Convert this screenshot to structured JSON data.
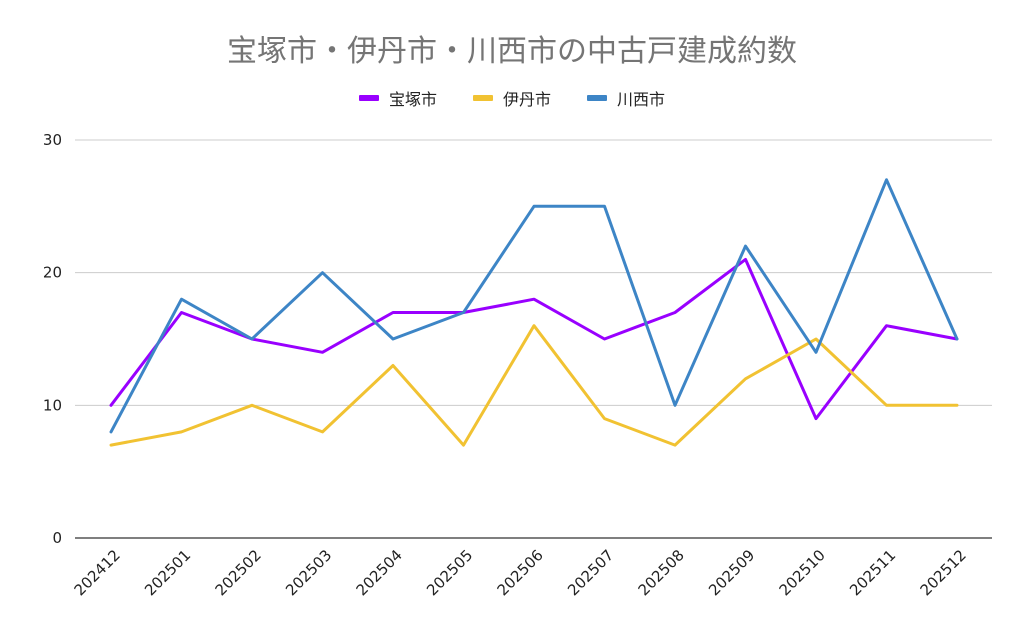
{
  "chart_data": {
    "type": "line",
    "title": "宝塚市・伊丹市・川西市の中古戸建成約数",
    "xlabel": "",
    "ylabel": "",
    "categories": [
      "202412",
      "202501",
      "202502",
      "202503",
      "202504",
      "202505",
      "202506",
      "202507",
      "202508",
      "202509",
      "202510",
      "202511",
      "202512"
    ],
    "ylim": [
      0,
      30
    ],
    "yticks": [
      0,
      10,
      20,
      30
    ],
    "grid": true,
    "legend_position": "top",
    "series": [
      {
        "name": "宝塚市",
        "color": "#9900FF",
        "values": [
          10,
          17,
          15,
          14,
          17,
          17,
          18,
          15,
          17,
          21,
          9,
          16,
          15
        ]
      },
      {
        "name": "伊丹市",
        "color": "#F1C232",
        "values": [
          7,
          8,
          10,
          8,
          13,
          7,
          16,
          9,
          7,
          12,
          15,
          10,
          10
        ]
      },
      {
        "name": "川西市",
        "color": "#3D85C6",
        "values": [
          8,
          18,
          15,
          20,
          15,
          17,
          25,
          25,
          10,
          22,
          14,
          27,
          15
        ]
      }
    ]
  }
}
